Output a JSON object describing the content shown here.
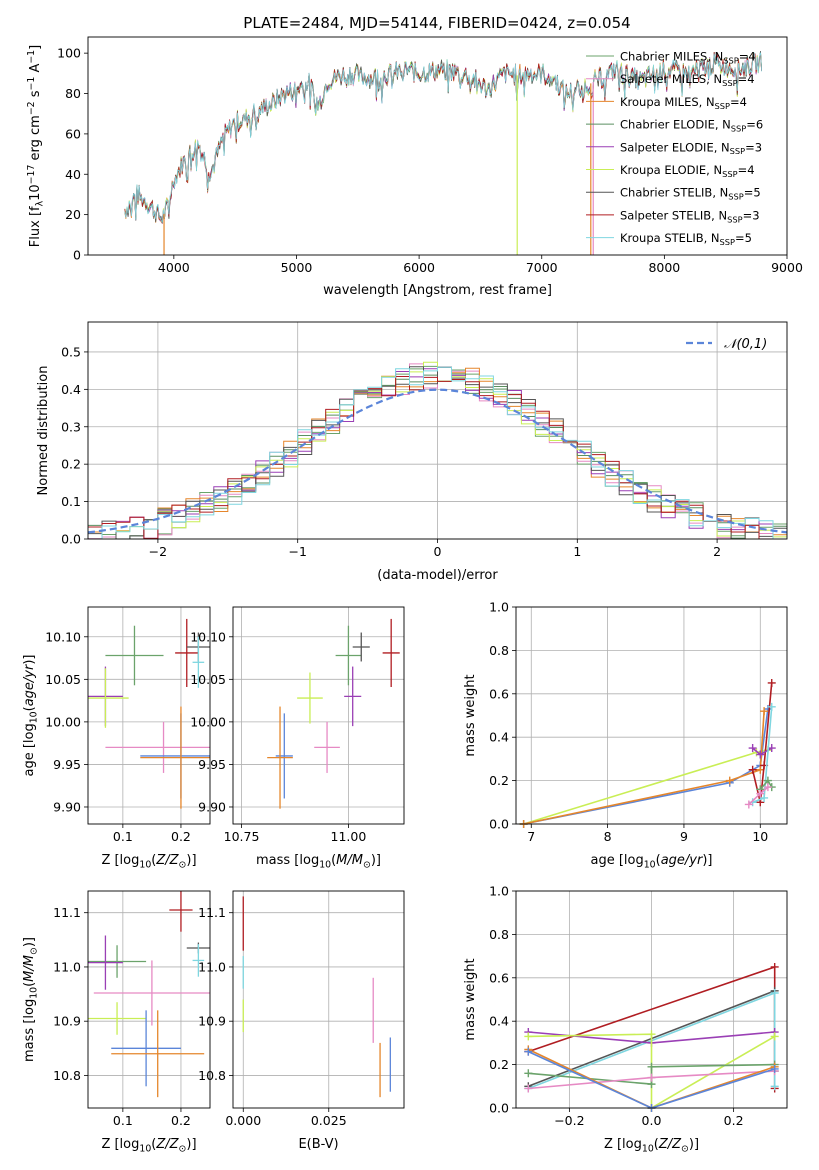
{
  "figure_title": "PLATE=2484, MJD=54144, FIBERID=0424, z=0.054",
  "colors": {
    "Chabrier MILES": "#6ba36b",
    "Salpeter MILES": "#e68ac4",
    "Kroupa MILES": "#e5862b",
    "Chabrier ELODIE": "#5a8f60",
    "Salpeter ELODIE": "#9a3fb5",
    "Kroupa ELODIE": "#c9ee55",
    "Chabrier STELIB": "#555555",
    "Salpeter STELIB": "#b01d22",
    "Kroupa STELIB": "#7fd6e0",
    "gaussian": "#5b85d9",
    "blue_extra": "#5b85d9"
  },
  "chart_data": [
    {
      "id": "spectrum",
      "type": "line",
      "title": "PLATE=2484, MJD=54144, FIBERID=0424, z=0.054",
      "xlabel": "wavelength [Angstrom, rest frame]",
      "ylabel": "Flux [f_λ10^-17 erg cm^-2 s^-1 A^-1]",
      "xlim": [
        3300,
        9000
      ],
      "ylim": [
        0,
        108
      ],
      "xticks": [
        4000,
        5000,
        6000,
        7000,
        8000,
        9000
      ],
      "yticks": [
        0,
        20,
        40,
        60,
        80,
        100
      ],
      "legend_position": "top-right",
      "legend": [
        "Chabrier MILES, N_SSP=4",
        "Salpeter MILES, N_SSP=4",
        "Kroupa MILES, N_SSP=4",
        "Chabrier ELODIE, N_SSP=6",
        "Salpeter ELODIE, N_SSP=3",
        "Kroupa ELODIE, N_SSP=4",
        "Chabrier STELIB, N_SSP=5",
        "Salpeter STELIB, N_SSP=3",
        "Kroupa STELIB, N_SSP=5"
      ],
      "x": [
        3600,
        3700,
        3800,
        3900,
        3950,
        4000,
        4100,
        4200,
        4300,
        4400,
        4500,
        4600,
        4700,
        4800,
        4900,
        5000,
        5100,
        5180,
        5250,
        5400,
        5600,
        5800,
        5900,
        6000,
        6200,
        6400,
        6560,
        6700,
        6800,
        6900,
        7000,
        7100,
        7200,
        7400,
        7600,
        7800,
        8000,
        8200,
        8400,
        8600,
        8800
      ],
      "y": [
        22,
        30,
        25,
        18,
        24,
        38,
        48,
        55,
        40,
        58,
        66,
        68,
        72,
        75,
        80,
        82,
        86,
        74,
        86,
        90,
        88,
        90,
        92,
        90,
        92,
        89,
        82,
        90,
        89,
        90,
        90,
        87,
        80,
        85,
        92,
        86,
        92,
        90,
        95,
        92,
        96
      ],
      "drops": [
        {
          "series": "Kroupa MILES",
          "x": 3920
        },
        {
          "series": "Kroupa ELODIE",
          "x": 6800
        },
        {
          "series": "Kroupa MILES",
          "x": 7400
        },
        {
          "series": "Salpeter MILES",
          "x": 7420
        }
      ]
    },
    {
      "id": "residuals",
      "type": "line",
      "xlabel": "(data-model)/error",
      "ylabel": "Normed distribution",
      "xlim": [
        -2.5,
        2.5
      ],
      "ylim": [
        0,
        0.58
      ],
      "xticks": [
        -2,
        -1,
        0,
        1,
        2
      ],
      "yticks": [
        0.0,
        0.1,
        0.2,
        0.3,
        0.4,
        0.5
      ],
      "legend_position": "top-right",
      "legend": [
        "𝒩(0,1)"
      ],
      "curve": "gaussian mean 0 sigma 1"
    },
    {
      "id": "age-vs-Z",
      "type": "scatter",
      "xlabel": "Z [log10(Z/Z⊙)]",
      "ylabel": "age  [log10(age/yr)]",
      "xlim": [
        0.04,
        0.25
      ],
      "ylim": [
        9.88,
        10.135
      ],
      "xticks": [
        0.1,
        0.2
      ],
      "yticks": [
        9.9,
        9.95,
        10.0,
        10.05,
        10.1
      ],
      "points": [
        {
          "series": "Chabrier MILES",
          "x": 0.12,
          "y": 10.078,
          "xerr": 0.05,
          "yerr": 0.035
        },
        {
          "series": "Salpeter STELIB",
          "x": 0.21,
          "y": 10.081,
          "xerr": 0.02,
          "yerr": 0.04
        },
        {
          "series": "Chabrier STELIB",
          "x": 0.23,
          "y": 10.088,
          "xerr": 0.02,
          "yerr": 0.017
        },
        {
          "series": "Kroupa STELIB",
          "x": 0.23,
          "y": 10.07,
          "xerr": 0.01,
          "yerr": 0.03
        },
        {
          "series": "Salpeter ELODIE",
          "x": 0.07,
          "y": 10.03,
          "xerr": 0.03,
          "yerr": 0.035
        },
        {
          "series": "Kroupa ELODIE",
          "x": 0.07,
          "y": 10.028,
          "xerr": 0.04,
          "yerr": 0.035
        },
        {
          "series": "Salpeter MILES",
          "x": 0.17,
          "y": 9.97,
          "xerr": 0.1,
          "yerr": 0.03
        },
        {
          "series": "blue_extra",
          "x": 0.2,
          "y": 9.96,
          "xerr": 0.07,
          "yerr": 0.05
        },
        {
          "series": "Kroupa MILES",
          "x": 0.2,
          "y": 9.958,
          "xerr": 0.07,
          "yerr": 0.06
        }
      ]
    },
    {
      "id": "age-vs-mass",
      "type": "scatter",
      "xlabel": "mass [log10(M/M⊙)]",
      "ylabel": "",
      "xlim": [
        10.73,
        11.13
      ],
      "ylim": [
        9.88,
        10.135
      ],
      "xticks": [
        10.75,
        11.0
      ],
      "yticks": [
        9.9,
        9.95,
        10.0,
        10.05,
        10.1
      ],
      "points": [
        {
          "series": "Chabrier MILES",
          "x": 11.0,
          "y": 10.078,
          "xerr": 0.03,
          "yerr": 0.035
        },
        {
          "series": "Salpeter STELIB",
          "x": 11.1,
          "y": 10.081,
          "xerr": 0.02,
          "yerr": 0.04
        },
        {
          "series": "Chabrier STELIB",
          "x": 11.03,
          "y": 10.088,
          "xerr": 0.02,
          "yerr": 0.017
        },
        {
          "series": "Salpeter ELODIE",
          "x": 11.01,
          "y": 10.03,
          "xerr": 0.02,
          "yerr": 0.035
        },
        {
          "series": "Kroupa ELODIE",
          "x": 10.91,
          "y": 10.028,
          "xerr": 0.03,
          "yerr": 0.03
        },
        {
          "series": "Salpeter MILES",
          "x": 10.95,
          "y": 9.97,
          "xerr": 0.03,
          "yerr": 0.03
        },
        {
          "series": "blue_extra",
          "x": 10.85,
          "y": 9.96,
          "xerr": 0.02,
          "yerr": 0.05
        },
        {
          "series": "Kroupa MILES",
          "x": 10.84,
          "y": 9.958,
          "xerr": 0.03,
          "yerr": 0.06
        }
      ]
    },
    {
      "id": "mass-weight-vs-age",
      "type": "line",
      "xlabel": "age  [log10(age/yr)]",
      "ylabel": "mass weight",
      "xlim": [
        6.8,
        10.35
      ],
      "ylim": [
        0,
        1.0
      ],
      "xticks": [
        7,
        8,
        9,
        10
      ],
      "yticks": [
        0.0,
        0.2,
        0.4,
        0.6,
        0.8,
        1.0
      ],
      "series": [
        {
          "series": "Kroupa ELODIE",
          "x": [
            6.9,
            9.95,
            10.1
          ],
          "y": [
            0.0,
            0.33,
            0.34
          ]
        },
        {
          "series": "blue_extra",
          "x": [
            6.9,
            9.6,
            10.0,
            10.1
          ],
          "y": [
            0.0,
            0.19,
            0.27,
            0.53
          ]
        },
        {
          "series": "Kroupa MILES",
          "x": [
            6.9,
            9.6,
            10.0,
            10.05
          ],
          "y": [
            0.0,
            0.2,
            0.25,
            0.52
          ]
        },
        {
          "series": "Salpeter STELIB",
          "x": [
            9.9,
            10.0,
            10.05,
            10.15
          ],
          "y": [
            0.25,
            0.1,
            0.27,
            0.65
          ]
        },
        {
          "series": "Salpeter ELODIE",
          "x": [
            9.9,
            10.0,
            10.15
          ],
          "y": [
            0.35,
            0.32,
            0.35
          ]
        },
        {
          "series": "Kroupa STELIB",
          "x": [
            9.9,
            10.05,
            10.15
          ],
          "y": [
            0.1,
            0.12,
            0.54
          ]
        },
        {
          "series": "Chabrier MILES",
          "x": [
            10.0,
            10.1,
            10.15
          ],
          "y": [
            0.16,
            0.2,
            0.17
          ]
        },
        {
          "series": "Salpeter MILES",
          "x": [
            9.85,
            10.0,
            10.1
          ],
          "y": [
            0.09,
            0.14,
            0.17
          ]
        }
      ]
    },
    {
      "id": "mass-vs-Z",
      "type": "scatter",
      "xlabel": "Z [log10(Z/Z⊙)]",
      "ylabel": "mass [log10(M/M⊙)]",
      "xlim": [
        0.04,
        0.25
      ],
      "ylim": [
        10.74,
        11.14
      ],
      "xticks": [
        0.1,
        0.2
      ],
      "yticks": [
        10.8,
        10.9,
        11.0,
        11.1
      ],
      "points": [
        {
          "series": "Salpeter STELIB",
          "x": 0.2,
          "y": 11.105,
          "xerr": 0.02,
          "yerr": 0.04
        },
        {
          "series": "Chabrier STELIB",
          "x": 0.23,
          "y": 11.035,
          "xerr": 0.02,
          "yerr": 0.01
        },
        {
          "series": "Chabrier MILES",
          "x": 0.09,
          "y": 11.01,
          "xerr": 0.05,
          "yerr": 0.03
        },
        {
          "series": "Salpeter ELODIE",
          "x": 0.07,
          "y": 11.008,
          "xerr": 0.03,
          "yerr": 0.05
        },
        {
          "series": "Kroupa STELIB",
          "x": 0.23,
          "y": 11.012,
          "xerr": 0.01,
          "yerr": 0.03
        },
        {
          "series": "Salpeter MILES",
          "x": 0.15,
          "y": 10.952,
          "xerr": 0.1,
          "yerr": 0.06
        },
        {
          "series": "Kroupa ELODIE",
          "x": 0.09,
          "y": 10.905,
          "xerr": 0.05,
          "yerr": 0.03
        },
        {
          "series": "blue_extra",
          "x": 0.14,
          "y": 10.85,
          "xerr": 0.06,
          "yerr": 0.07
        },
        {
          "series": "Kroupa MILES",
          "x": 0.16,
          "y": 10.84,
          "xerr": 0.08,
          "yerr": 0.08
        }
      ]
    },
    {
      "id": "mass-vs-EBV",
      "type": "scatter",
      "xlabel": "E(B-V)",
      "ylabel": "",
      "xlim": [
        -0.003,
        0.047
      ],
      "ylim": [
        10.74,
        11.14
      ],
      "xticks": [
        0.0,
        0.025
      ],
      "xtick_labels": [
        "0.000",
        "0.025"
      ],
      "yticks": [
        10.8,
        10.9,
        11.0,
        11.1
      ],
      "points": [
        {
          "series": "Salpeter STELIB",
          "x": 0.0,
          "y": 11.08,
          "xerr": 0,
          "yerr": 0.05
        },
        {
          "series": "Kroupa STELIB",
          "x": 0.0,
          "y": 10.99,
          "xerr": 0,
          "yerr": 0.03
        },
        {
          "series": "Kroupa ELODIE",
          "x": 0.0,
          "y": 10.91,
          "xerr": 0,
          "yerr": 0.03
        },
        {
          "series": "Salpeter MILES",
          "x": 0.038,
          "y": 10.92,
          "xerr": 0,
          "yerr": 0.06
        },
        {
          "series": "Kroupa MILES",
          "x": 0.04,
          "y": 10.81,
          "xerr": 0,
          "yerr": 0.05
        },
        {
          "series": "blue_extra",
          "x": 0.043,
          "y": 10.82,
          "xerr": 0,
          "yerr": 0.05
        }
      ]
    },
    {
      "id": "mass-weight-vs-Z",
      "type": "line",
      "xlabel": "Z [log10(Z/Z⊙)]",
      "ylabel": "mass weight",
      "xlim": [
        -0.33,
        0.33
      ],
      "ylim": [
        0,
        1.0
      ],
      "xticks": [
        -0.2,
        0.0,
        0.2
      ],
      "yticks": [
        0.0,
        0.2,
        0.4,
        0.6,
        0.8,
        1.0
      ],
      "series": [
        {
          "series": "Salpeter STELIB",
          "x": [
            -0.3,
            0.3,
            0.3
          ],
          "y": [
            0.26,
            0.65,
            0.09
          ]
        },
        {
          "series": "Chabrier STELIB",
          "x": [
            -0.3,
            0.3,
            0.3
          ],
          "y": [
            0.1,
            0.54,
            0.17
          ]
        },
        {
          "series": "Kroupa STELIB",
          "x": [
            -0.3,
            0.3,
            0.3
          ],
          "y": [
            0.09,
            0.53,
            0.1
          ]
        },
        {
          "series": "Salpeter ELODIE",
          "x": [
            -0.3,
            0.0,
            0.3
          ],
          "y": [
            0.35,
            0.3,
            0.35
          ]
        },
        {
          "series": "Kroupa ELODIE",
          "x": [
            -0.3,
            0.0,
            0.0,
            0.3
          ],
          "y": [
            0.33,
            0.34,
            0.0,
            0.33
          ]
        },
        {
          "series": "Chabrier MILES",
          "x": [
            -0.3,
            0.0,
            0.0,
            0.3
          ],
          "y": [
            0.16,
            0.11,
            0.19,
            0.2
          ]
        },
        {
          "series": "Salpeter MILES",
          "x": [
            -0.3,
            0.0,
            0.3
          ],
          "y": [
            0.09,
            0.14,
            0.17
          ]
        },
        {
          "series": "Kroupa MILES",
          "x": [
            -0.3,
            0.0,
            0.3
          ],
          "y": [
            0.27,
            0.0,
            0.19
          ]
        },
        {
          "series": "blue_extra",
          "x": [
            -0.3,
            0.0,
            0.3
          ],
          "y": [
            0.26,
            0.0,
            0.18
          ]
        }
      ]
    }
  ]
}
